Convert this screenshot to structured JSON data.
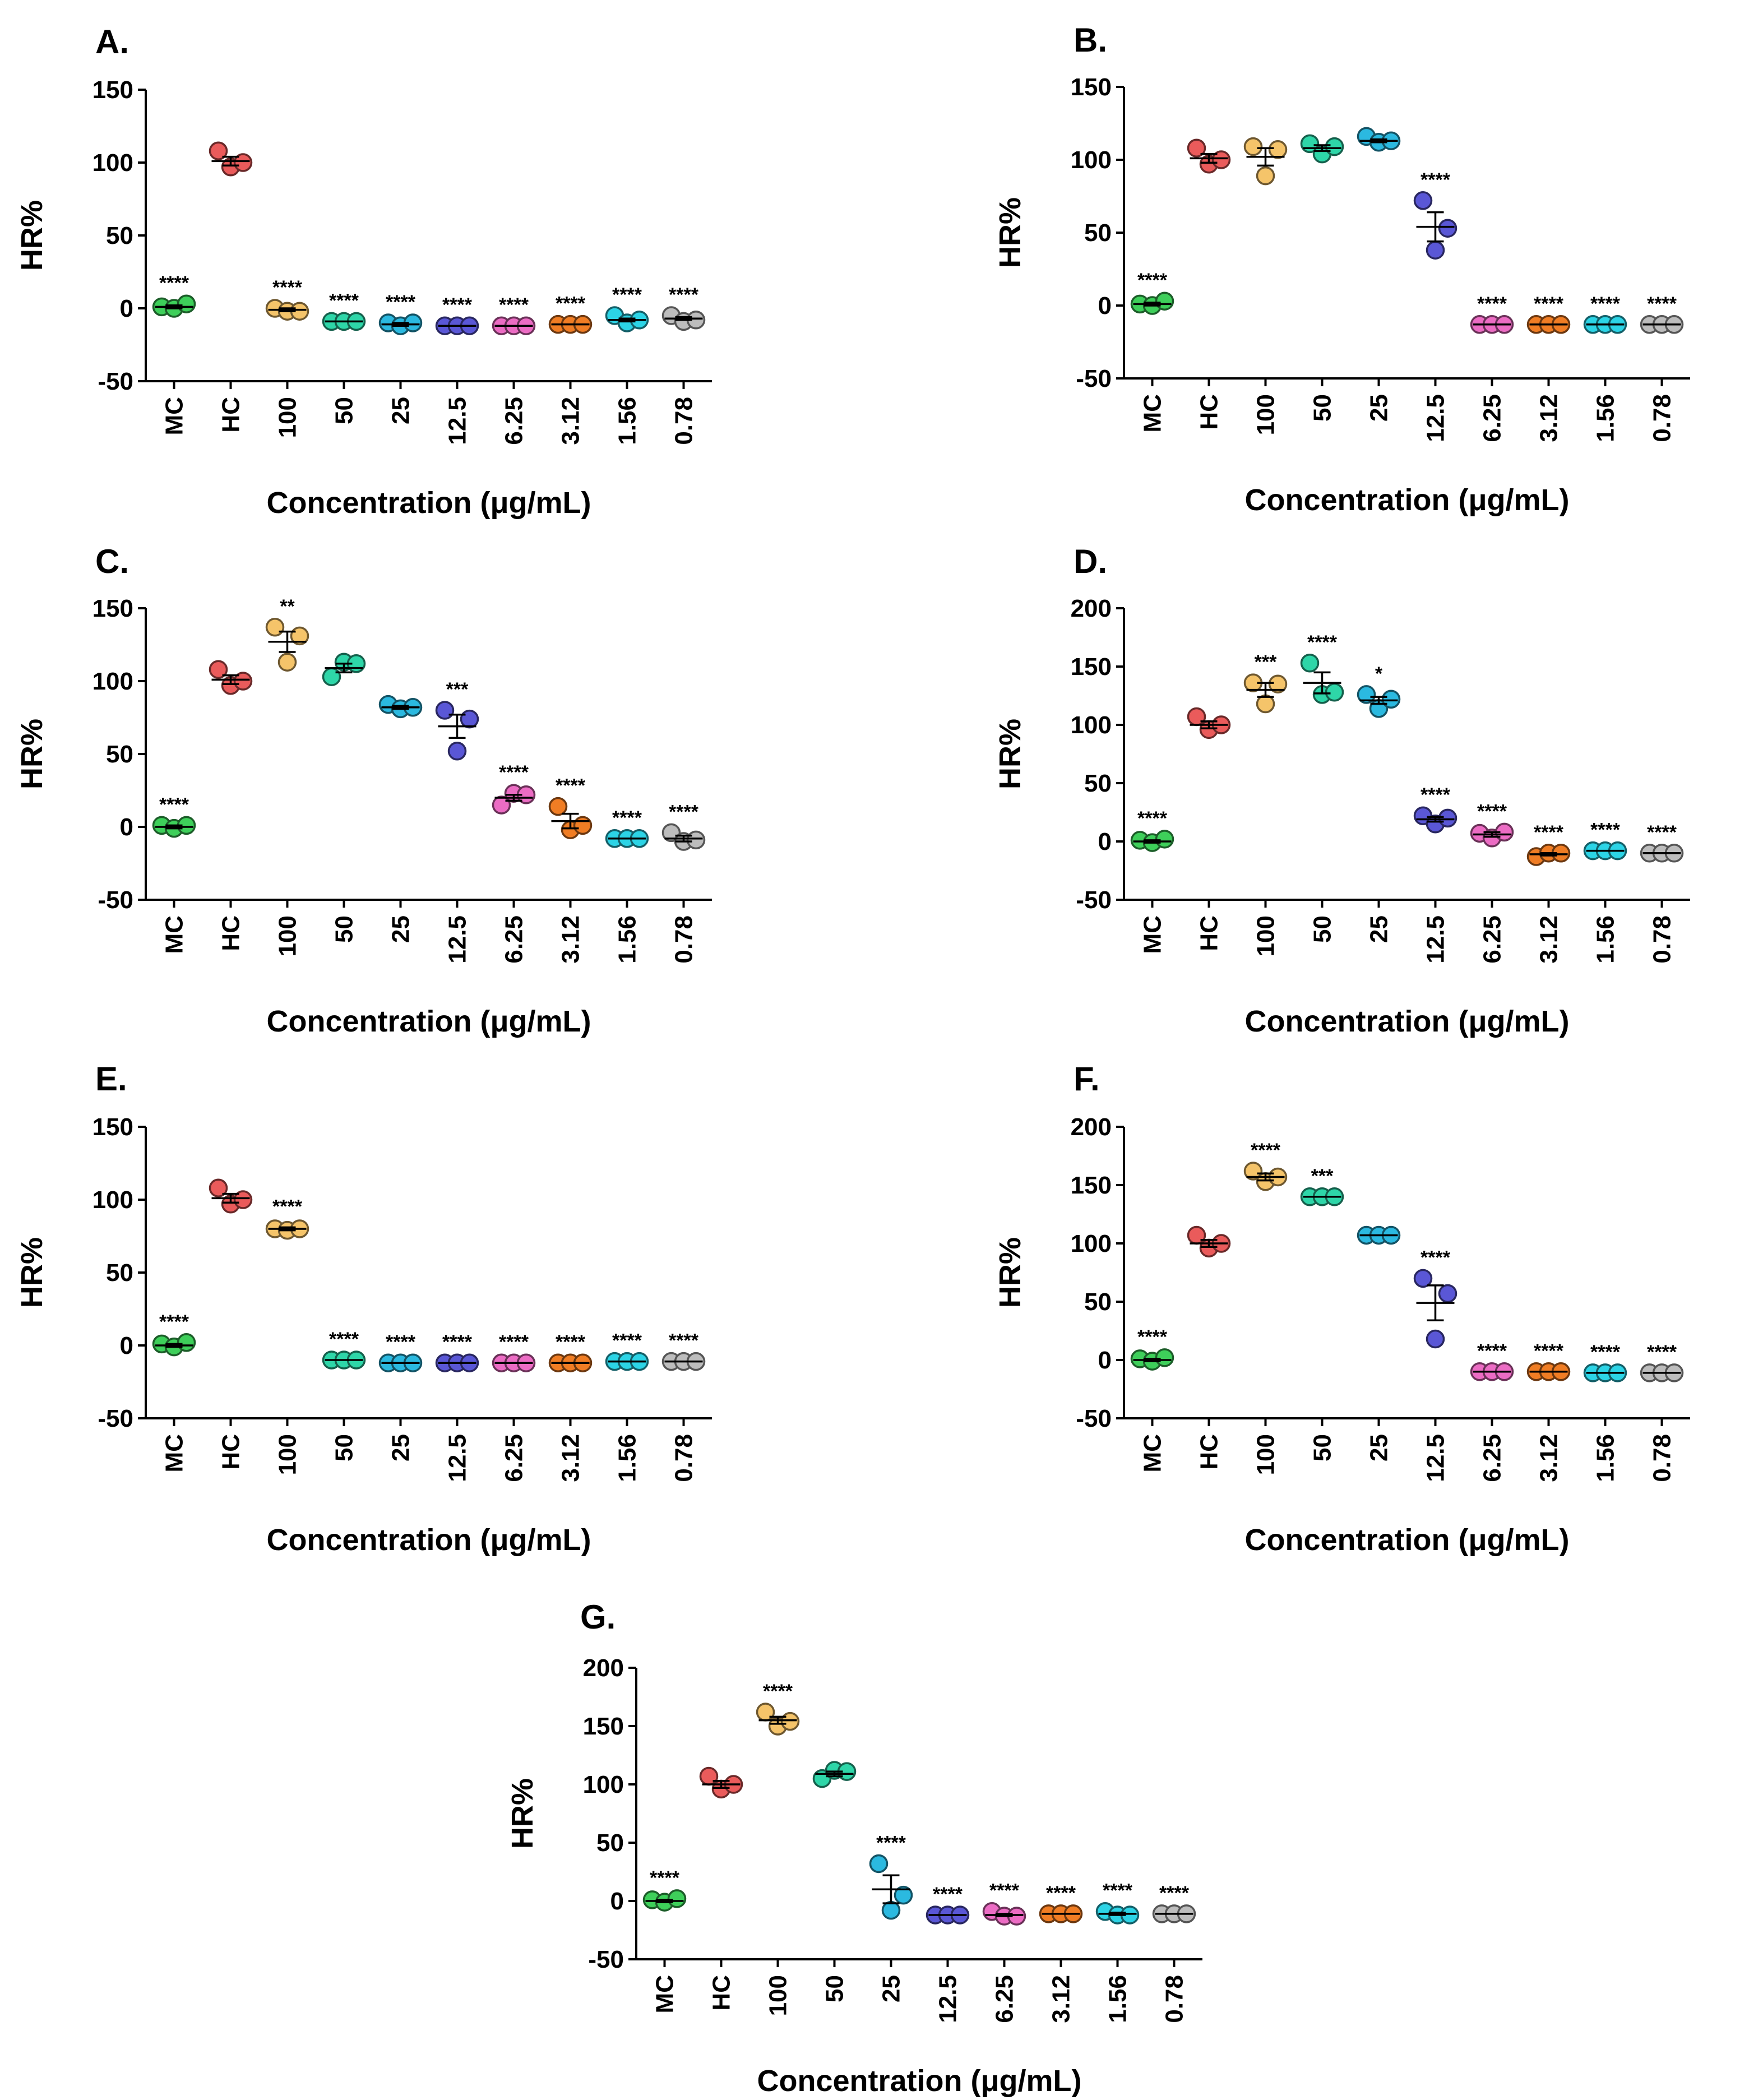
{
  "common": {
    "ylabel": "HR%",
    "xlabel": "Concentration (μg/mL)",
    "categories": [
      "MC",
      "HC",
      "100",
      "50",
      "25",
      "12.5",
      "6.25",
      "3.12",
      "1.56",
      "0.78"
    ],
    "colors": [
      "#3ecf5a",
      "#ea5b5b",
      "#f5c46a",
      "#2ed6a8",
      "#2bb9e0",
      "#5a57d6",
      "#ec6cc4",
      "#f07d24",
      "#2cd4e6",
      "#bdbdbd"
    ]
  },
  "chart_data": [
    {
      "type": "scatter",
      "title": "A.",
      "ylim": [
        -50,
        150
      ],
      "yticks": [
        -50,
        0,
        50,
        100,
        150
      ],
      "points": [
        [
          1,
          0,
          3
        ],
        [
          108,
          97,
          100
        ],
        [
          0,
          -2,
          -2
        ],
        [
          -9,
          -9,
          -9
        ],
        [
          -10,
          -12,
          -10
        ],
        [
          -12,
          -12,
          -12
        ],
        [
          -12,
          -12,
          -12
        ],
        [
          -11,
          -11,
          -11
        ],
        [
          -5,
          -10,
          -8
        ],
        [
          -5,
          -9,
          -8
        ]
      ],
      "means": [
        1,
        101,
        -1,
        -9,
        -11,
        -12,
        -12,
        -11,
        -8,
        -7
      ],
      "sem": [
        1,
        3,
        1,
        0,
        1,
        0,
        0,
        0,
        1,
        1
      ],
      "significance": [
        "****",
        "",
        "****",
        "****",
        "****",
        "****",
        "****",
        "****",
        "****",
        "****"
      ]
    },
    {
      "type": "scatter",
      "title": "B.",
      "ylim": [
        -50,
        150
      ],
      "yticks": [
        -50,
        0,
        50,
        100,
        150
      ],
      "points": [
        [
          1,
          0,
          3
        ],
        [
          108,
          97,
          100
        ],
        [
          109,
          89,
          107
        ],
        [
          111,
          104,
          109
        ],
        [
          116,
          112,
          113
        ],
        [
          72,
          38,
          53
        ],
        [
          -13,
          -13,
          -13
        ],
        [
          -13,
          -13,
          -13
        ],
        [
          -13,
          -13,
          -13
        ],
        [
          -13,
          -13,
          -13
        ]
      ],
      "means": [
        1,
        101,
        102,
        108,
        113,
        54,
        -13,
        -13,
        -13,
        -13
      ],
      "sem": [
        1,
        3,
        6,
        2,
        1,
        10,
        0,
        0,
        0,
        0
      ],
      "significance": [
        "****",
        "",
        "",
        "",
        "",
        "****",
        "****",
        "****",
        "****",
        "****"
      ]
    },
    {
      "type": "scatter",
      "title": "C.",
      "ylim": [
        -50,
        150
      ],
      "yticks": [
        -50,
        0,
        50,
        100,
        150
      ],
      "points": [
        [
          1,
          -1,
          1
        ],
        [
          108,
          97,
          100
        ],
        [
          137,
          113,
          131
        ],
        [
          103,
          113,
          112
        ],
        [
          84,
          81,
          82
        ],
        [
          80,
          52,
          74
        ],
        [
          15,
          23,
          22
        ],
        [
          14,
          -2,
          1
        ],
        [
          -8,
          -8,
          -8
        ],
        [
          -4,
          -10,
          -9
        ]
      ],
      "means": [
        0,
        101,
        127,
        109,
        82,
        69,
        20,
        4,
        -8,
        -8
      ],
      "sem": [
        1,
        3,
        7,
        3,
        1,
        8,
        2,
        5,
        0,
        2
      ],
      "significance": [
        "****",
        "",
        "**",
        "",
        "",
        "***",
        "****",
        "****",
        "****",
        "****"
      ]
    },
    {
      "type": "scatter",
      "title": "D.",
      "ylim": [
        -50,
        200
      ],
      "yticks": [
        -50,
        0,
        50,
        100,
        150,
        200
      ],
      "points": [
        [
          1,
          -1,
          2
        ],
        [
          107,
          96,
          100
        ],
        [
          136,
          118,
          135
        ],
        [
          153,
          126,
          128
        ],
        [
          126,
          114,
          122
        ],
        [
          22,
          15,
          20
        ],
        [
          7,
          3,
          8
        ],
        [
          -13,
          -10,
          -10
        ],
        [
          -8,
          -8,
          -8
        ],
        [
          -10,
          -10,
          -10
        ]
      ],
      "means": [
        0,
        100,
        130,
        136,
        121,
        19,
        6,
        -11,
        -8,
        -10
      ],
      "sem": [
        1,
        3,
        6,
        9,
        3,
        2,
        2,
        1,
        0,
        0
      ],
      "significance": [
        "****",
        "",
        "***",
        "****",
        "*",
        "****",
        "****",
        "****",
        "****",
        "****"
      ]
    },
    {
      "type": "scatter",
      "title": "E.",
      "ylim": [
        -50,
        150
      ],
      "yticks": [
        -50,
        0,
        50,
        100,
        150
      ],
      "points": [
        [
          1,
          -1,
          2
        ],
        [
          108,
          97,
          100
        ],
        [
          80,
          79,
          80
        ],
        [
          -10,
          -10,
          -10
        ],
        [
          -12,
          -12,
          -12
        ],
        [
          -12,
          -12,
          -12
        ],
        [
          -12,
          -12,
          -12
        ],
        [
          -12,
          -12,
          -12
        ],
        [
          -11,
          -11,
          -11
        ],
        [
          -11,
          -11,
          -11
        ]
      ],
      "means": [
        0,
        101,
        80,
        -10,
        -12,
        -12,
        -12,
        -12,
        -11,
        -11
      ],
      "sem": [
        1,
        3,
        1,
        0,
        0,
        0,
        0,
        0,
        0,
        0
      ],
      "significance": [
        "****",
        "",
        "****",
        "****",
        "****",
        "****",
        "****",
        "****",
        "****",
        "****"
      ]
    },
    {
      "type": "scatter",
      "title": "F.",
      "ylim": [
        -50,
        200
      ],
      "yticks": [
        -50,
        0,
        50,
        100,
        150,
        200
      ],
      "points": [
        [
          1,
          -1,
          2
        ],
        [
          107,
          96,
          100
        ],
        [
          162,
          153,
          157
        ],
        [
          140,
          140,
          140
        ],
        [
          107,
          107,
          107
        ],
        [
          70,
          18,
          57
        ],
        [
          -10,
          -10,
          -10
        ],
        [
          -10,
          -10,
          -10
        ],
        [
          -11,
          -11,
          -11
        ],
        [
          -11,
          -11,
          -11
        ]
      ],
      "means": [
        0,
        100,
        157,
        140,
        107,
        49,
        -10,
        -10,
        -11,
        -11
      ],
      "sem": [
        1,
        3,
        3,
        0,
        0,
        15,
        0,
        0,
        0,
        0
      ],
      "significance": [
        "****",
        "",
        "****",
        "***",
        "",
        "****",
        "****",
        "****",
        "****",
        "****"
      ]
    },
    {
      "type": "scatter",
      "title": "G.",
      "ylim": [
        -50,
        200
      ],
      "yticks": [
        -50,
        0,
        50,
        100,
        150,
        200
      ],
      "points": [
        [
          1,
          -1,
          2
        ],
        [
          107,
          96,
          100
        ],
        [
          162,
          150,
          154
        ],
        [
          105,
          112,
          111
        ],
        [
          32,
          -8,
          5
        ],
        [
          -12,
          -12,
          -12
        ],
        [
          -9,
          -13,
          -13
        ],
        [
          -11,
          -11,
          -11
        ],
        [
          -9,
          -12,
          -12
        ],
        [
          -11,
          -11,
          -11
        ]
      ],
      "means": [
        0,
        100,
        155,
        109,
        10,
        -12,
        -12,
        -11,
        -11,
        -11
      ],
      "sem": [
        1,
        3,
        3,
        2,
        12,
        0,
        1,
        0,
        1,
        0
      ],
      "significance": [
        "****",
        "",
        "****",
        "",
        "****",
        "****",
        "****",
        "****",
        "****",
        "****"
      ]
    }
  ]
}
